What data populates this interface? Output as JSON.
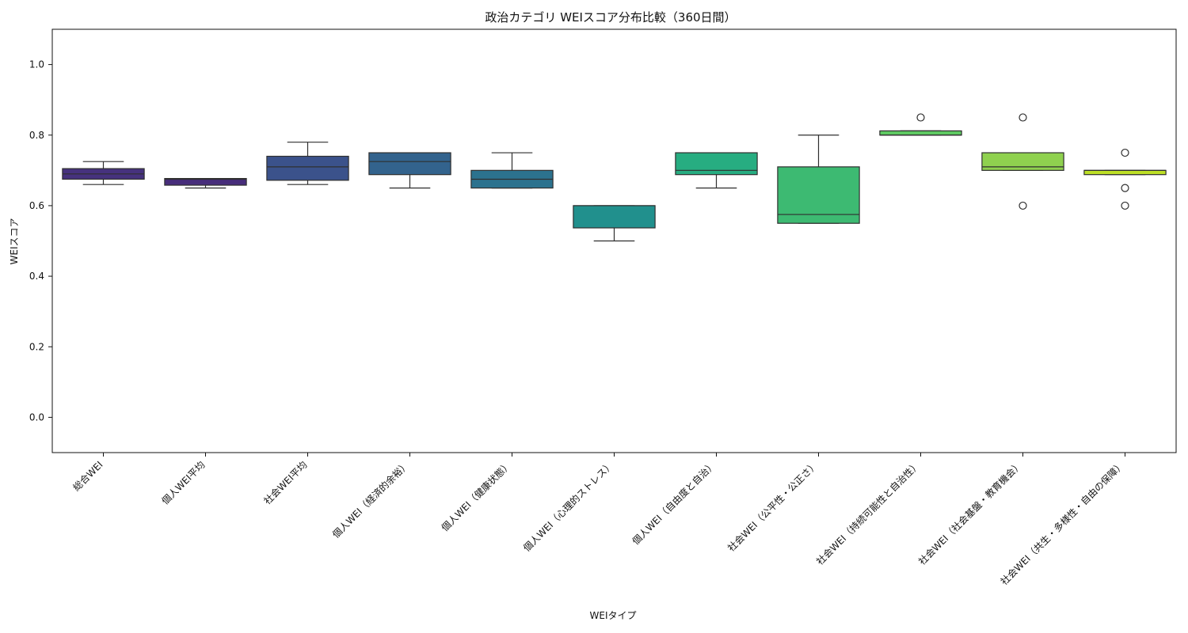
{
  "chart_data": {
    "type": "box",
    "title": "政治カテゴリ WEIスコア分布比較（360日間）",
    "xlabel": "WEIタイプ",
    "ylabel": "WEIスコア",
    "ylim": [
      -0.1,
      1.1
    ],
    "yticks": [
      0.0,
      0.2,
      0.4,
      0.6,
      0.8,
      1.0
    ],
    "ytick_labels": [
      "0.0",
      "0.2",
      "0.4",
      "0.6",
      "0.8",
      "1.0"
    ],
    "grid": false,
    "categories": [
      "総合WEI",
      "個人WEI平均",
      "社会WEI平均",
      "個人WEI（経済的余裕）",
      "個人WEI（健康状態）",
      "個人WEI（心理的ストレス）",
      "個人WEI（自由度と自治）",
      "社会WEI（公平性・公正さ）",
      "社会WEI（持続可能性と自治性）",
      "社会WEI（社会基盤・教育機会）",
      "社会WEI（共生・多様性・自由の保障）"
    ],
    "boxes": [
      {
        "min": 0.66,
        "q1": 0.675,
        "median": 0.69,
        "q3": 0.705,
        "max": 0.725,
        "outliers": [],
        "color": "#46327e"
      },
      {
        "min": 0.65,
        "q1": 0.658,
        "median": 0.675,
        "q3": 0.677,
        "max": 0.677,
        "outliers": [],
        "color": "#472d7b"
      },
      {
        "min": 0.66,
        "q1": 0.672,
        "median": 0.71,
        "q3": 0.74,
        "max": 0.78,
        "outliers": [],
        "color": "#3b528b"
      },
      {
        "min": 0.65,
        "q1": 0.688,
        "median": 0.725,
        "q3": 0.75,
        "max": 0.75,
        "outliers": [],
        "color": "#33638d"
      },
      {
        "min": 0.65,
        "q1": 0.65,
        "median": 0.675,
        "q3": 0.7,
        "max": 0.75,
        "outliers": [],
        "color": "#2c728e"
      },
      {
        "min": 0.5,
        "q1": 0.537,
        "median": 0.6,
        "q3": 0.6,
        "max": 0.6,
        "outliers": [],
        "color": "#21908d"
      },
      {
        "min": 0.65,
        "q1": 0.688,
        "median": 0.7,
        "q3": 0.75,
        "max": 0.75,
        "outliers": [],
        "color": "#27ad81"
      },
      {
        "min": 0.55,
        "q1": 0.55,
        "median": 0.575,
        "q3": 0.71,
        "max": 0.8,
        "outliers": [],
        "color": "#3dba72"
      },
      {
        "min": 0.8,
        "q1": 0.8,
        "median": 0.8,
        "q3": 0.812,
        "max": 0.812,
        "outliers": [
          0.85
        ],
        "color": "#5ec962"
      },
      {
        "min": 0.7,
        "q1": 0.7,
        "median": 0.71,
        "q3": 0.75,
        "max": 0.75,
        "outliers": [
          0.85,
          0.6
        ],
        "color": "#8fd14f"
      },
      {
        "min": 0.688,
        "q1": 0.688,
        "median": 0.7,
        "q3": 0.7,
        "max": 0.7,
        "outliers": [
          0.75,
          0.65,
          0.6
        ],
        "color": "#bddf26"
      }
    ]
  }
}
